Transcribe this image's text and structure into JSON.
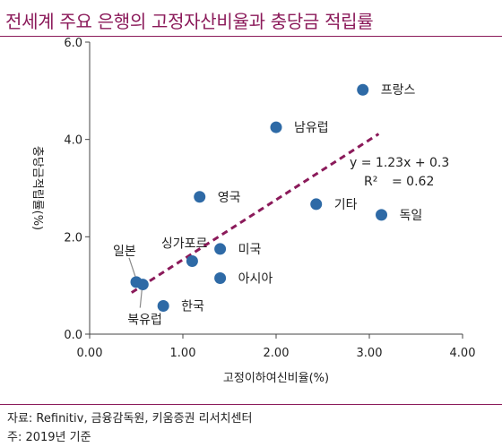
{
  "title": "전세계 주요 은행의 고정자산비율과 충당금 적립률",
  "source": "자료: Refinitiv, 금융감독원, 키움증권 리서치센터",
  "note": "주: 2019년 기준",
  "colors": {
    "title": "#8b1a5a",
    "point": "#2e6aa6",
    "trendline": "#8b1a5a"
  },
  "chart_data": {
    "type": "scatter",
    "xlabel": "고정이하여신비율(%)",
    "ylabel": "충당금적립률(%)",
    "xlim": [
      0,
      4
    ],
    "ylim": [
      0,
      6
    ],
    "x_ticks": [
      "0.00",
      "1.00",
      "2.00",
      "3.00",
      "4.00"
    ],
    "y_ticks": [
      "0.0",
      "2.0",
      "4.0",
      "6.0"
    ],
    "grid": false,
    "points": [
      {
        "label": "프랑스",
        "x": 2.93,
        "y": 5.02
      },
      {
        "label": "남유럽",
        "x": 2.0,
        "y": 4.25
      },
      {
        "label": "기타",
        "x": 2.43,
        "y": 2.67
      },
      {
        "label": "독일",
        "x": 3.13,
        "y": 2.45
      },
      {
        "label": "영국",
        "x": 1.18,
        "y": 2.82
      },
      {
        "label": "싱가포르",
        "x": 1.1,
        "y": 1.5
      },
      {
        "label": "미국",
        "x": 1.4,
        "y": 1.75
      },
      {
        "label": "아시아",
        "x": 1.4,
        "y": 1.15
      },
      {
        "label": "일본",
        "x": 0.5,
        "y": 1.07
      },
      {
        "label": "북유럽",
        "x": 0.57,
        "y": 1.02
      },
      {
        "label": "한국",
        "x": 0.79,
        "y": 0.58
      }
    ],
    "trendline": {
      "slope": 1.23,
      "intercept": 0.3,
      "x_range": [
        0.45,
        3.1
      ],
      "equation": "y = 1.23x + 0.3",
      "r2_label": "R²",
      "r2_value": "= 0.62"
    }
  }
}
